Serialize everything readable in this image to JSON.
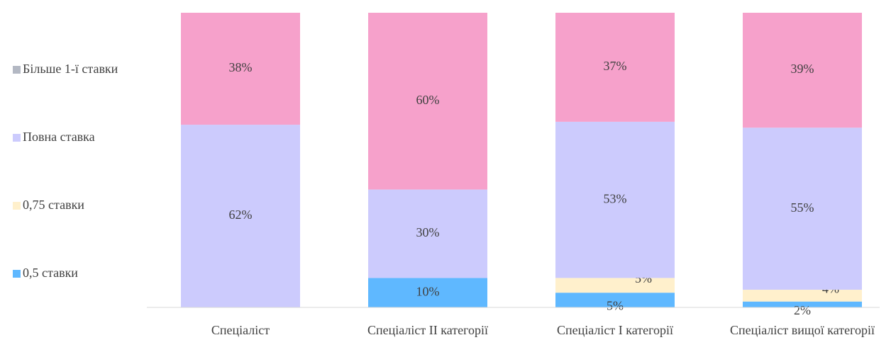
{
  "chart_data": {
    "type": "stacked_bar",
    "categories": [
      "Спеціаліст",
      "Спеціаліст II категорії",
      "Спеціаліст I категорії",
      "Спеціаліст вищої категорії"
    ],
    "series": [
      {
        "name": "0,5 ставки",
        "color": "#5fb8ff",
        "values": [
          0,
          10,
          5,
          2
        ],
        "value_labels": [
          null,
          "10%",
          "5%",
          "2%"
        ]
      },
      {
        "name": "0,75 ставки",
        "color": "#fff0cc",
        "values": [
          0,
          0,
          5,
          4
        ],
        "value_labels": [
          null,
          null,
          "5%",
          "4%"
        ]
      },
      {
        "name": "Повна ставка",
        "color": "#cccbfd",
        "values": [
          62,
          30,
          53,
          55
        ],
        "value_labels": [
          "62%",
          "30%",
          "53%",
          "55%"
        ]
      },
      {
        "name": "Більше 1-ї ставки",
        "color": "#f6a1cb",
        "legend_color": "#b3b8c3",
        "values": [
          38,
          60,
          37,
          39
        ],
        "value_labels": [
          "38%",
          "60%",
          "37%",
          "39%"
        ]
      }
    ],
    "ylim": [
      0,
      100
    ],
    "legend": "left"
  }
}
